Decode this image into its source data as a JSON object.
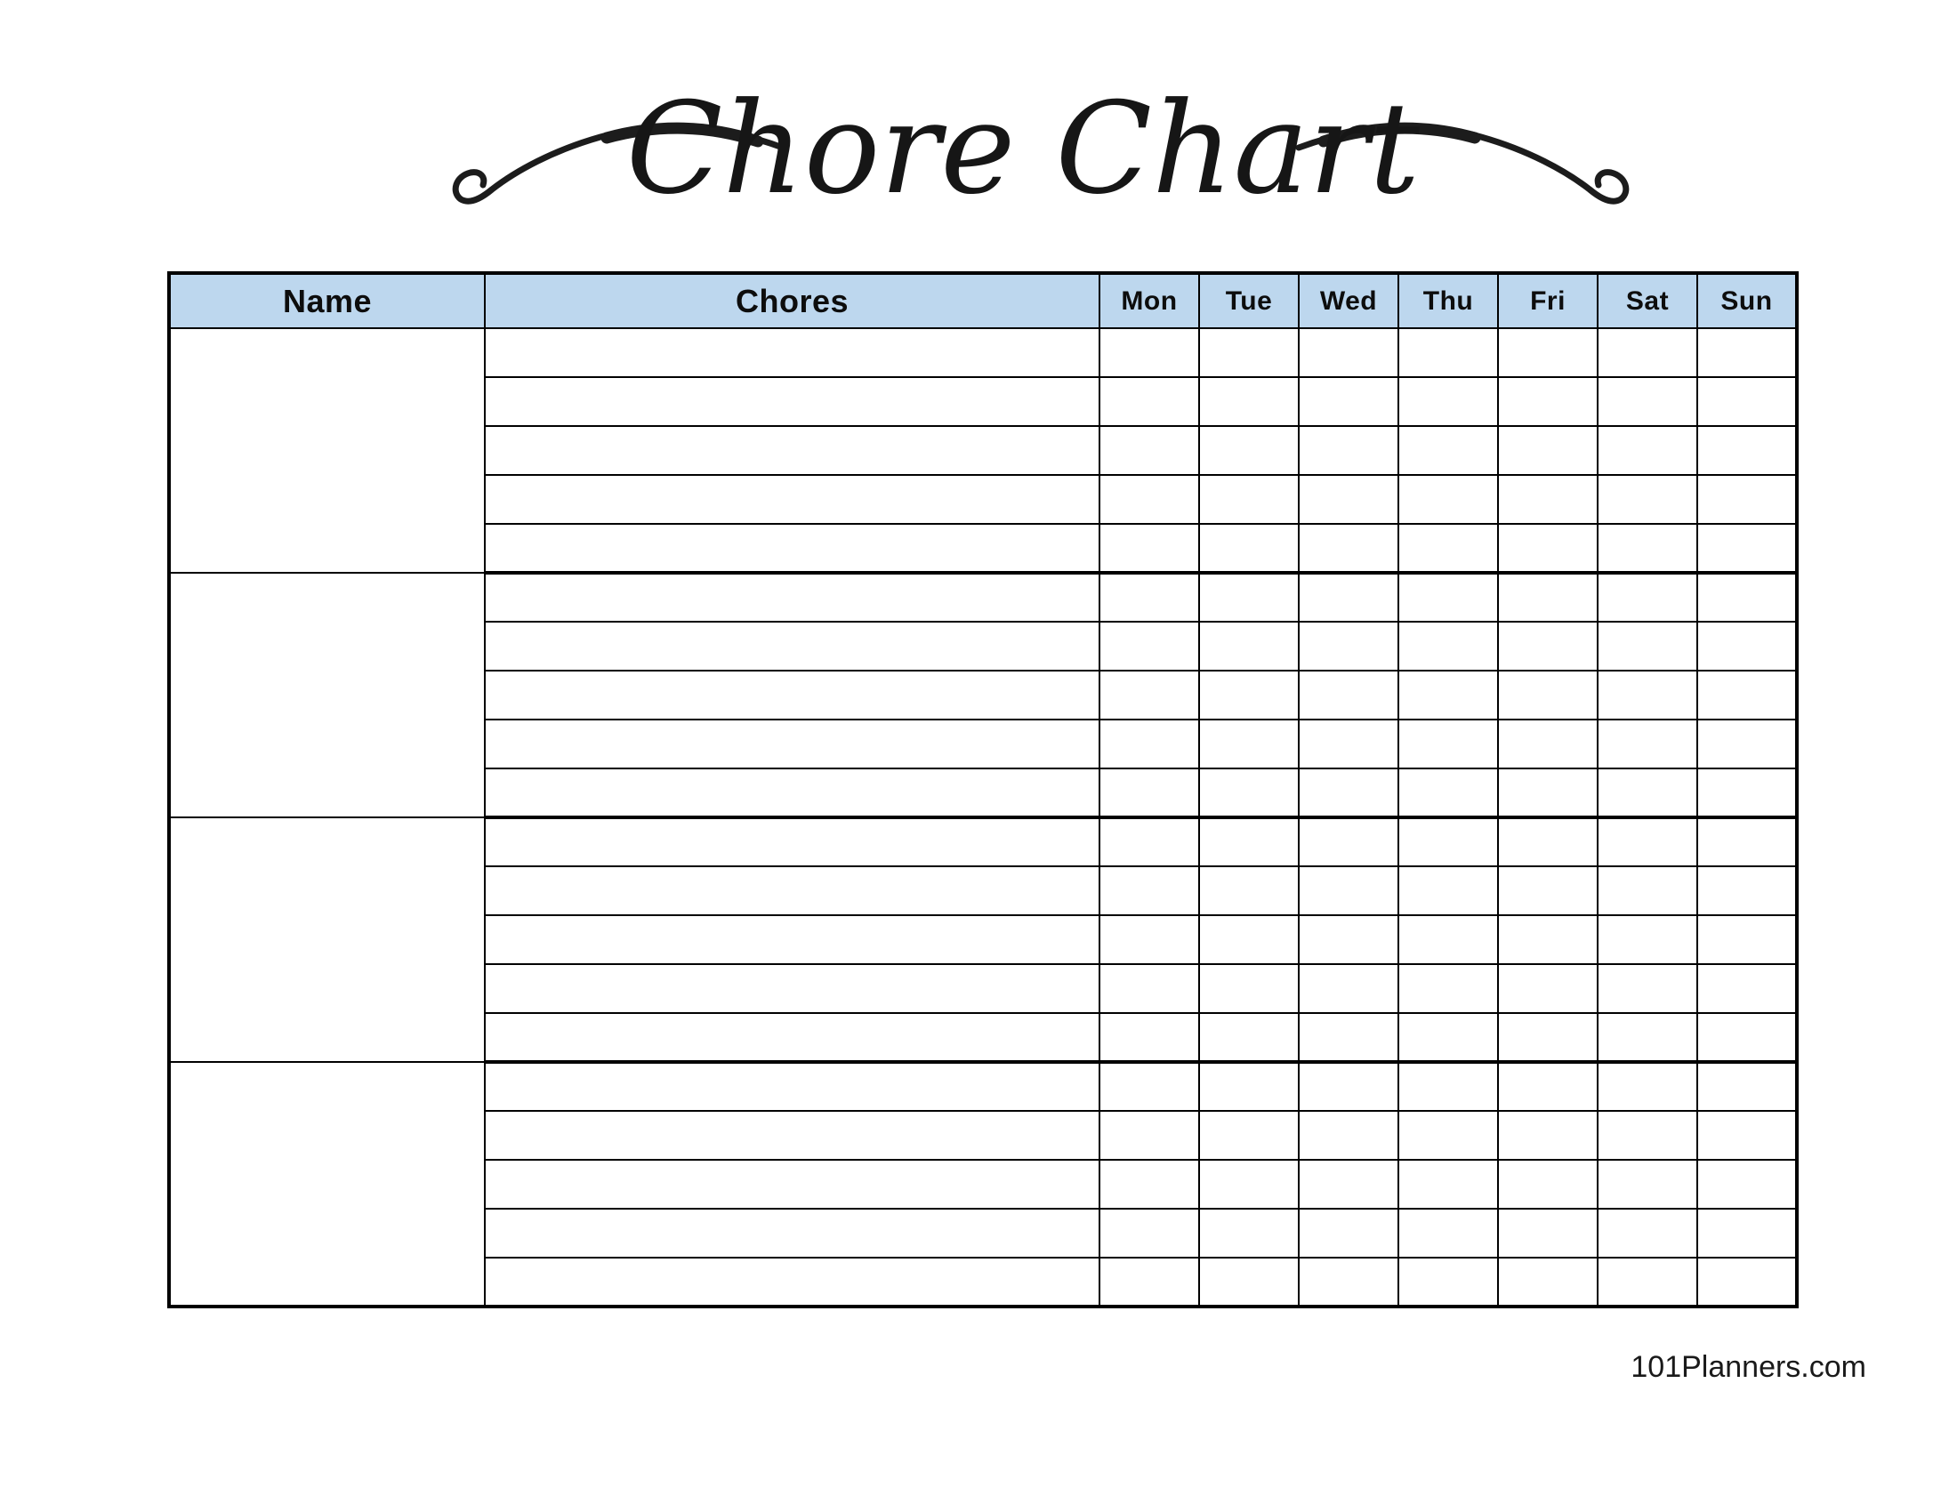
{
  "title": {
    "text": "Chore Chart"
  },
  "table": {
    "header": {
      "name": "Name",
      "chores": "Chores",
      "days": [
        "Mon",
        "Tue",
        "Wed",
        "Thu",
        "Fri",
        "Sat",
        "Sun"
      ]
    },
    "structure": {
      "groups": 4,
      "chore_rows_per_group": 5
    }
  },
  "colors": {
    "page_bg": "#FFFFFF",
    "header_bg": "#BDD7EE",
    "border": "#000000",
    "text": "#000000"
  },
  "footer": {
    "site": "101Planners.com"
  }
}
